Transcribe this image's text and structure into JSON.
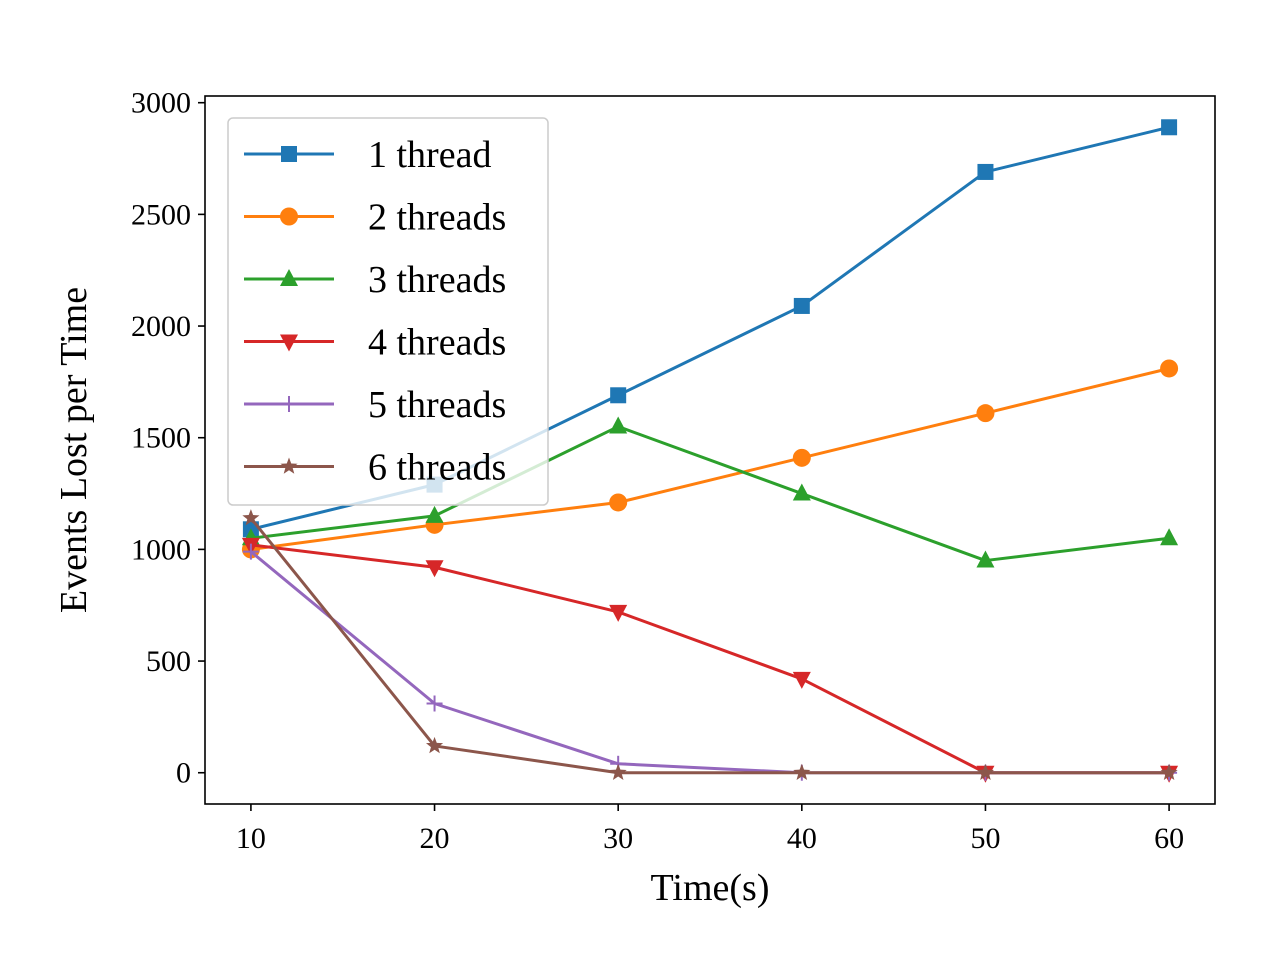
{
  "chart_data": {
    "type": "line",
    "xlabel": "Time(s)",
    "ylabel": "Events Lost per Time",
    "xlim": [
      7.5,
      62.5
    ],
    "ylim": [
      -140,
      3030
    ],
    "xticks": [
      10,
      20,
      30,
      40,
      50,
      60
    ],
    "yticks": [
      0,
      500,
      1000,
      1500,
      2000,
      2500,
      3000
    ],
    "grid": false,
    "legend_position": "top-left",
    "x": [
      10,
      20,
      30,
      40,
      50,
      60
    ],
    "series": [
      {
        "name": "1 thread",
        "color": "#1f77b4",
        "marker": "square",
        "values": [
          1090,
          1290,
          1690,
          2090,
          2690,
          2890
        ]
      },
      {
        "name": "2 threads",
        "color": "#ff7f0e",
        "marker": "circle",
        "values": [
          1000,
          1110,
          1210,
          1410,
          1610,
          1810
        ]
      },
      {
        "name": "3 threads",
        "color": "#2ca02c",
        "marker": "triangle-up",
        "values": [
          1050,
          1150,
          1550,
          1250,
          950,
          1050
        ]
      },
      {
        "name": "4 threads",
        "color": "#d62728",
        "marker": "triangle-down",
        "values": [
          1020,
          920,
          720,
          420,
          0,
          0
        ]
      },
      {
        "name": "5 threads",
        "color": "#9467bd",
        "marker": "plus",
        "values": [
          990,
          310,
          40,
          0,
          0,
          0
        ]
      },
      {
        "name": "6 threads",
        "color": "#8c564b",
        "marker": "star",
        "values": [
          1140,
          120,
          0,
          0,
          0,
          0
        ]
      }
    ]
  }
}
